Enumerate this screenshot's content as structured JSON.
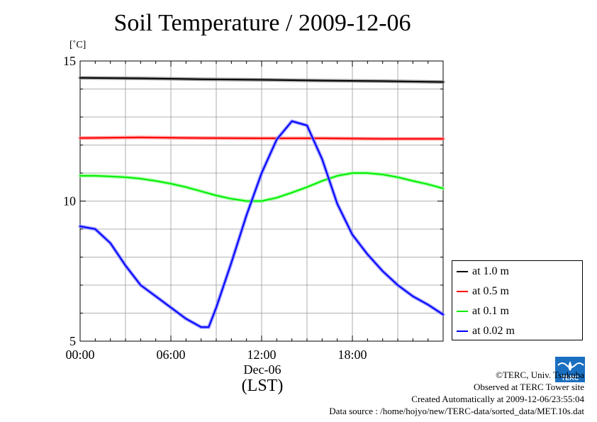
{
  "title": "Soil Temperature / 2009-12-06",
  "unit_label": "[˚C]",
  "x_date_label": "Dec-06",
  "x_timezone_label": "(LST)",
  "credits": {
    "copyright": "©TERC, Univ. Tsukuba",
    "observed": "Observed at TERC Tower site",
    "created": "Created Automatically at 2009-12-06/23:55:04",
    "source": "Data source : /home/hojyo/new/TERC-data/sorted_data/MET.10s.dat"
  },
  "logo_text": "TERC",
  "chart_data": {
    "type": "line",
    "title": "Soil Temperature / 2009-12-06",
    "ylabel": "[˚C]",
    "xlabel": "Dec-06 (LST)",
    "xlim": [
      0,
      24
    ],
    "ylim": [
      5,
      15
    ],
    "x_ticks": [
      0,
      6,
      12,
      18
    ],
    "x_tick_labels": [
      "00:00",
      "06:00",
      "12:00",
      "18:00"
    ],
    "y_ticks": [
      5,
      10,
      15
    ],
    "y_tick_labels": [
      "5",
      "10",
      "15"
    ],
    "grid": true,
    "legend_position": "right",
    "series": [
      {
        "name": "at 1.0 m",
        "color": "#000000",
        "x": [
          0,
          4,
          8,
          12,
          16,
          20,
          24
        ],
        "y": [
          14.4,
          14.38,
          14.35,
          14.33,
          14.3,
          14.28,
          14.25
        ]
      },
      {
        "name": "at 0.5 m",
        "color": "#ff0000",
        "x": [
          0,
          4,
          8,
          12,
          16,
          20,
          24
        ],
        "y": [
          12.25,
          12.27,
          12.25,
          12.24,
          12.24,
          12.22,
          12.22
        ]
      },
      {
        "name": "at 0.1 m",
        "color": "#00ee00",
        "x": [
          0,
          1,
          2,
          3,
          4,
          5,
          6,
          7,
          8,
          9,
          10,
          11,
          12,
          13,
          14,
          15,
          16,
          17,
          18,
          19,
          20,
          21,
          22,
          23,
          24
        ],
        "y": [
          10.9,
          10.9,
          10.88,
          10.85,
          10.8,
          10.72,
          10.62,
          10.5,
          10.35,
          10.2,
          10.08,
          10.0,
          10.0,
          10.12,
          10.3,
          10.5,
          10.72,
          10.9,
          11.0,
          11.0,
          10.95,
          10.85,
          10.72,
          10.6,
          10.45
        ]
      },
      {
        "name": "at 0.02 m",
        "color": "#0000ff",
        "x": [
          0,
          1,
          2,
          3,
          4,
          5,
          6,
          7,
          8,
          8.5,
          9,
          10,
          11,
          12,
          13,
          14,
          15,
          16,
          17,
          18,
          19,
          20,
          21,
          22,
          23,
          24
        ],
        "y": [
          9.1,
          9.0,
          8.5,
          7.7,
          7.0,
          6.6,
          6.2,
          5.8,
          5.5,
          5.5,
          6.2,
          7.8,
          9.5,
          11.0,
          12.2,
          12.85,
          12.7,
          11.5,
          9.9,
          8.8,
          8.1,
          7.5,
          7.0,
          6.6,
          6.3,
          5.95
        ]
      }
    ]
  }
}
